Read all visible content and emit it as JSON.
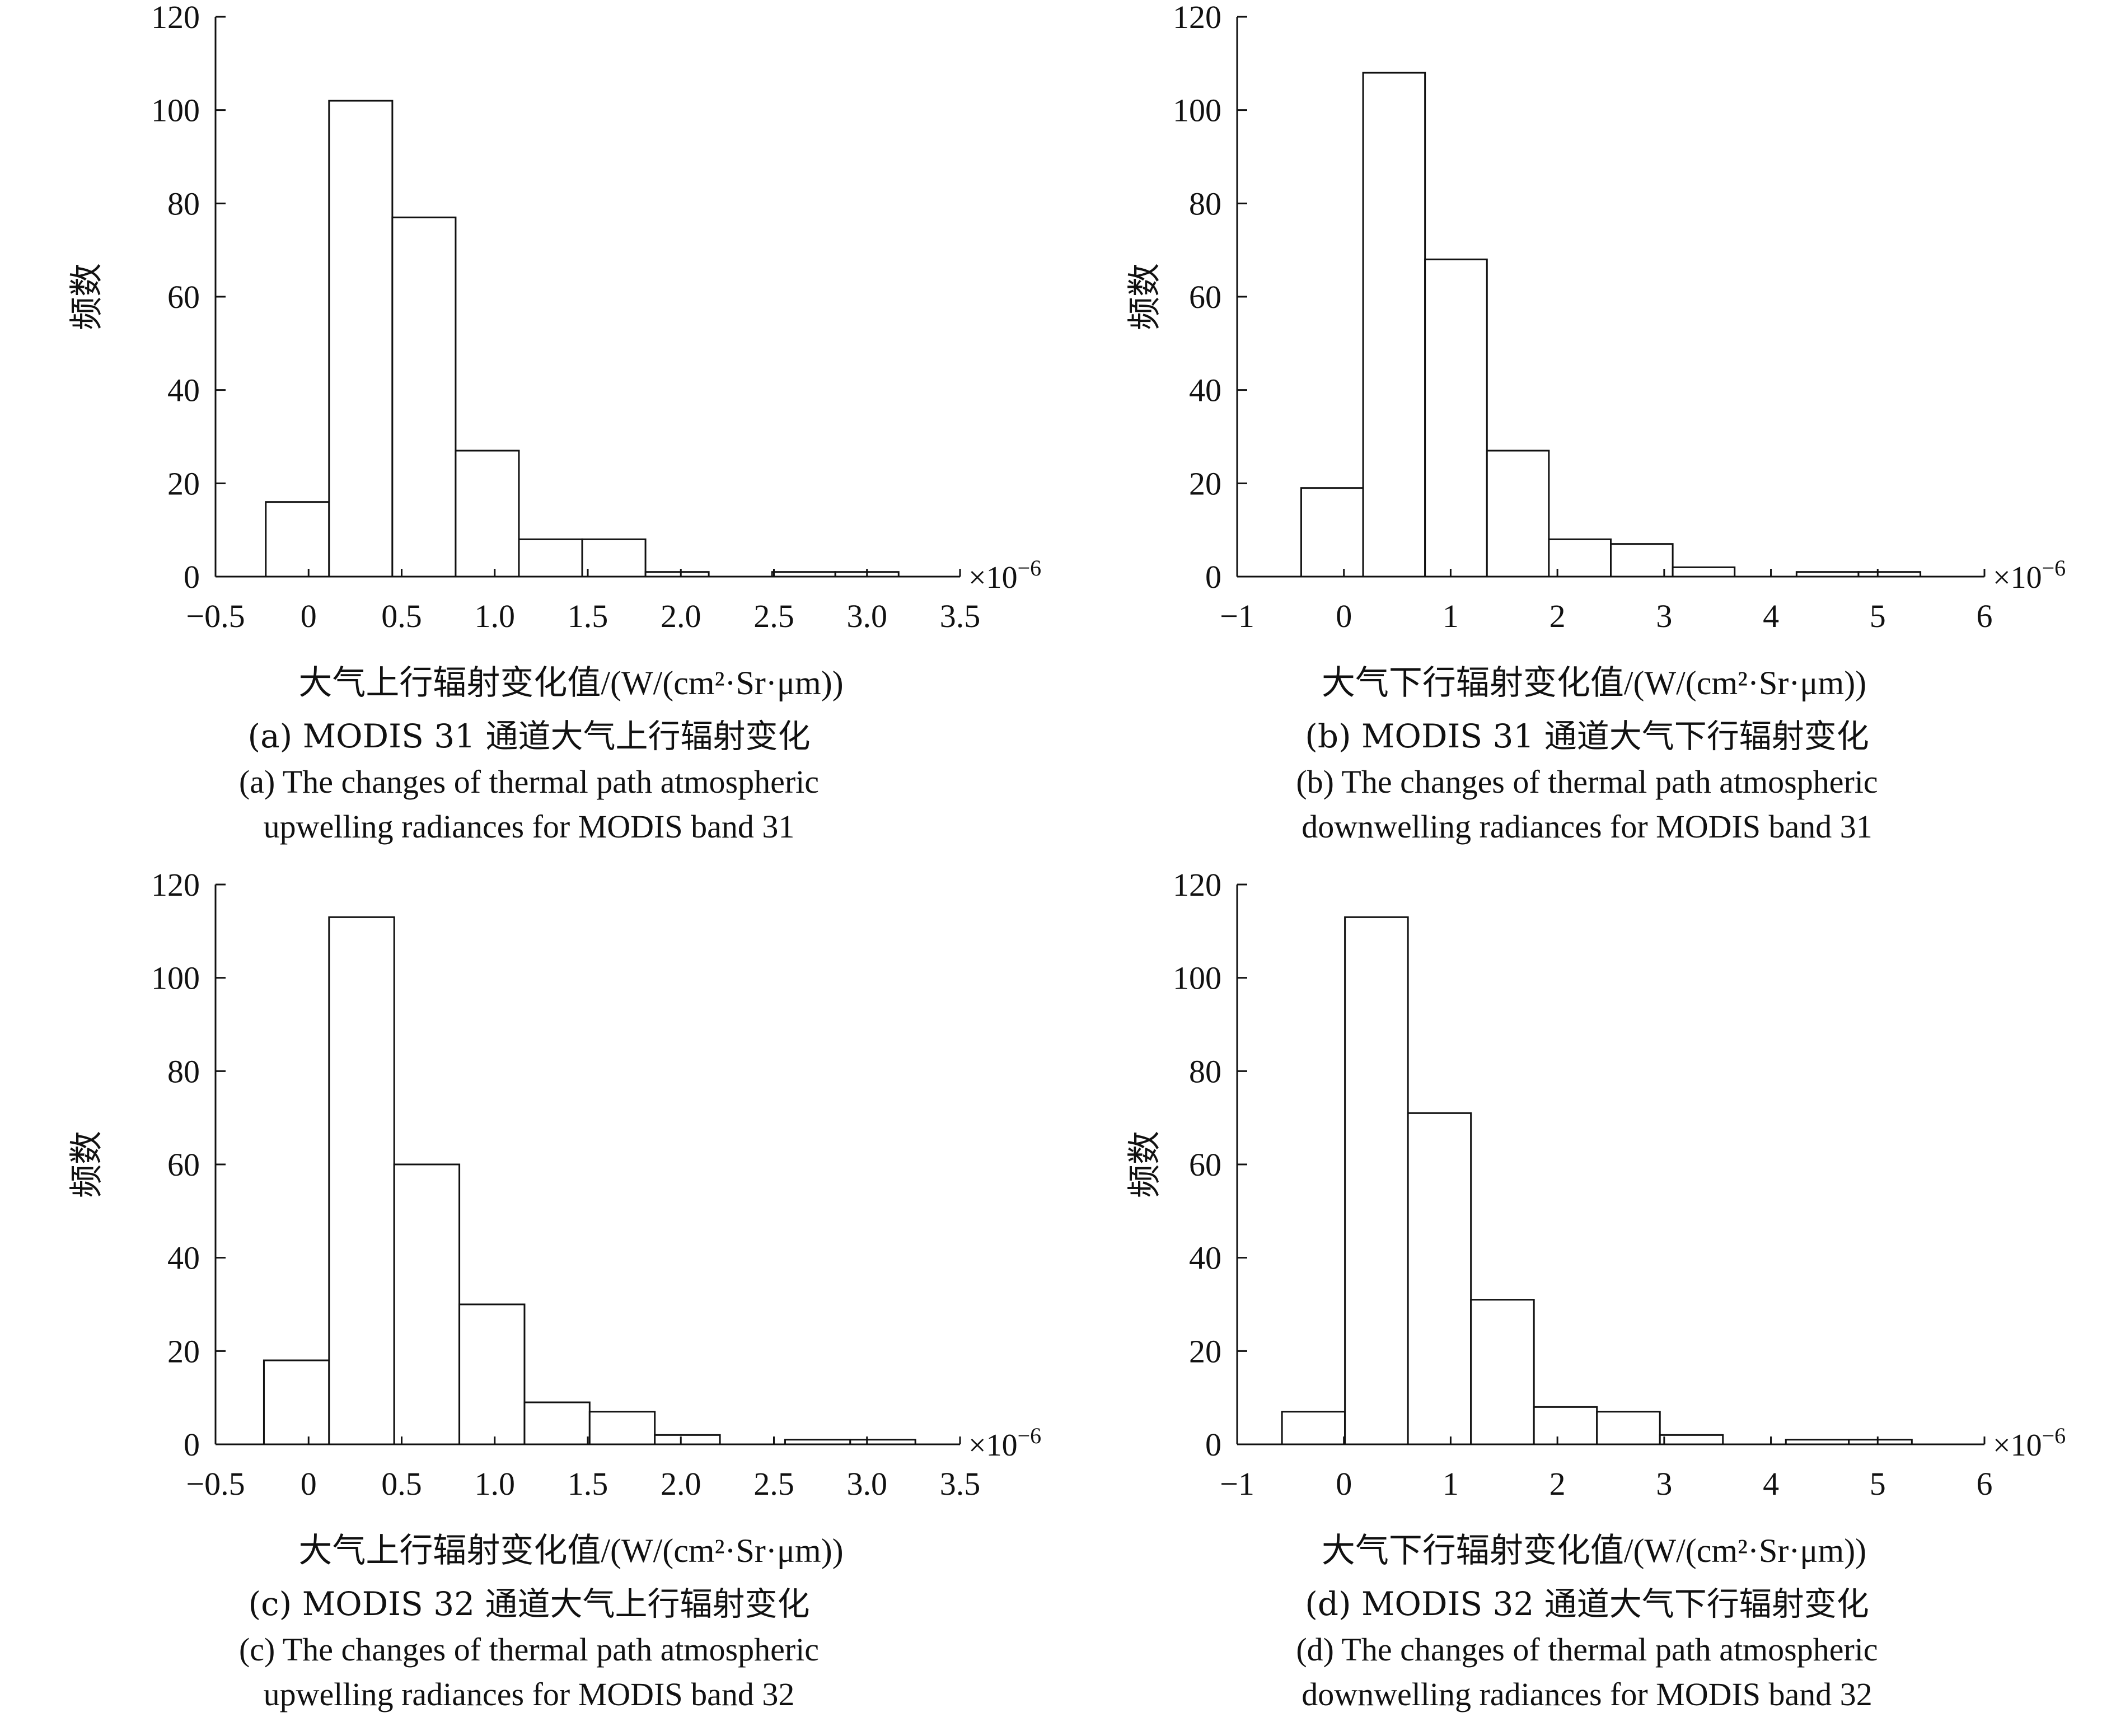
{
  "chart_data": [
    {
      "type": "bar",
      "panel": "a",
      "ylabel": "频数",
      "xlabel": "大气上行辐射变化值/(W/(cm²·Sr·μm))",
      "x_multiplier": "×10−6",
      "xlim": [
        -0.5,
        3.5
      ],
      "ylim": [
        0,
        120
      ],
      "xticks": [
        "−0.5",
        "0",
        "0.5",
        "1.0",
        "1.5",
        "2.0",
        "2.5",
        "3.0",
        "3.5"
      ],
      "xtick_values": [
        -0.5,
        0,
        0.5,
        1.0,
        1.5,
        2.0,
        2.5,
        3.0,
        3.5
      ],
      "yticks": [
        "0",
        "20",
        "40",
        "60",
        "80",
        "100",
        "120"
      ],
      "bins": [
        {
          "x0": -0.23,
          "x1": 0.11,
          "count": 16
        },
        {
          "x0": 0.11,
          "x1": 0.45,
          "count": 102
        },
        {
          "x0": 0.45,
          "x1": 0.79,
          "count": 77
        },
        {
          "x0": 0.79,
          "x1": 1.13,
          "count": 27
        },
        {
          "x0": 1.13,
          "x1": 1.47,
          "count": 8
        },
        {
          "x0": 1.47,
          "x1": 1.81,
          "count": 8
        },
        {
          "x0": 1.81,
          "x1": 2.15,
          "count": 1
        },
        {
          "x0": 2.15,
          "x1": 2.49,
          "count": 0
        },
        {
          "x0": 2.49,
          "x1": 2.83,
          "count": 1
        },
        {
          "x0": 2.83,
          "x1": 3.17,
          "count": 1
        }
      ],
      "caption_cn": "(a) MODIS 31 通道大气上行辐射变化",
      "caption_en_1": "(a) The changes of thermal path atmospheric",
      "caption_en_2": "upwelling radiances for MODIS band 31"
    },
    {
      "type": "bar",
      "panel": "b",
      "ylabel": "频数",
      "xlabel": "大气下行辐射变化值/(W/(cm²·Sr·μm))",
      "x_multiplier": "×10−6",
      "xlim": [
        -1,
        6
      ],
      "ylim": [
        0,
        120
      ],
      "xticks": [
        "−1",
        "0",
        "1",
        "2",
        "3",
        "4",
        "5",
        "6"
      ],
      "xtick_values": [
        -1,
        0,
        1,
        2,
        3,
        4,
        5,
        6
      ],
      "yticks": [
        "0",
        "20",
        "40",
        "60",
        "80",
        "100",
        "120"
      ],
      "bins": [
        {
          "x0": -0.4,
          "x1": 0.18,
          "count": 19
        },
        {
          "x0": 0.18,
          "x1": 0.76,
          "count": 108
        },
        {
          "x0": 0.76,
          "x1": 1.34,
          "count": 68
        },
        {
          "x0": 1.34,
          "x1": 1.92,
          "count": 27
        },
        {
          "x0": 1.92,
          "x1": 2.5,
          "count": 8
        },
        {
          "x0": 2.5,
          "x1": 3.08,
          "count": 7
        },
        {
          "x0": 3.08,
          "x1": 3.66,
          "count": 2
        },
        {
          "x0": 3.66,
          "x1": 4.24,
          "count": 0
        },
        {
          "x0": 4.24,
          "x1": 4.82,
          "count": 1
        },
        {
          "x0": 4.82,
          "x1": 5.4,
          "count": 1
        }
      ],
      "caption_cn": "(b) MODIS 31 通道大气下行辐射变化",
      "caption_en_1": "(b) The changes of thermal path atmospheric",
      "caption_en_2": "downwelling radiances for MODIS band 31"
    },
    {
      "type": "bar",
      "panel": "c",
      "ylabel": "频数",
      "xlabel": "大气上行辐射变化值/(W/(cm²·Sr·μm))",
      "x_multiplier": "×10−6",
      "xlim": [
        -0.5,
        3.5
      ],
      "ylim": [
        0,
        120
      ],
      "xticks": [
        "−0.5",
        "0",
        "0.5",
        "1.0",
        "1.5",
        "2.0",
        "2.5",
        "3.0",
        "3.5"
      ],
      "xtick_values": [
        -0.5,
        0,
        0.5,
        1.0,
        1.5,
        2.0,
        2.5,
        3.0,
        3.5
      ],
      "yticks": [
        "0",
        "20",
        "40",
        "60",
        "80",
        "100",
        "120"
      ],
      "bins": [
        {
          "x0": -0.24,
          "x1": 0.11,
          "count": 18
        },
        {
          "x0": 0.11,
          "x1": 0.46,
          "count": 113
        },
        {
          "x0": 0.46,
          "x1": 0.81,
          "count": 60
        },
        {
          "x0": 0.81,
          "x1": 1.16,
          "count": 30
        },
        {
          "x0": 1.16,
          "x1": 1.51,
          "count": 9
        },
        {
          "x0": 1.51,
          "x1": 1.86,
          "count": 7
        },
        {
          "x0": 1.86,
          "x1": 2.21,
          "count": 2
        },
        {
          "x0": 2.21,
          "x1": 2.56,
          "count": 0
        },
        {
          "x0": 2.56,
          "x1": 2.91,
          "count": 1
        },
        {
          "x0": 2.91,
          "x1": 3.26,
          "count": 1
        }
      ],
      "caption_cn": "(c) MODIS 32 通道大气上行辐射变化",
      "caption_en_1": "(c) The changes of thermal path atmospheric",
      "caption_en_2": "upwelling radiances for MODIS band 32"
    },
    {
      "type": "bar",
      "panel": "d",
      "ylabel": "频数",
      "xlabel": "大气下行辐射变化值/(W/(cm²·Sr·μm))",
      "x_multiplier": "×10−6",
      "xlim": [
        -1,
        6
      ],
      "ylim": [
        0,
        120
      ],
      "xticks": [
        "−1",
        "0",
        "1",
        "2",
        "3",
        "4",
        "5",
        "6"
      ],
      "xtick_values": [
        -1,
        0,
        1,
        2,
        3,
        4,
        5,
        6
      ],
      "yticks": [
        "0",
        "20",
        "40",
        "60",
        "80",
        "100",
        "120"
      ],
      "bins": [
        {
          "x0": -0.58,
          "x1": 0.01,
          "count": 7
        },
        {
          "x0": 0.01,
          "x1": 0.6,
          "count": 113
        },
        {
          "x0": 0.6,
          "x1": 1.19,
          "count": 71
        },
        {
          "x0": 1.19,
          "x1": 1.78,
          "count": 31
        },
        {
          "x0": 1.78,
          "x1": 2.37,
          "count": 8
        },
        {
          "x0": 2.37,
          "x1": 2.96,
          "count": 7
        },
        {
          "x0": 2.96,
          "x1": 3.55,
          "count": 2
        },
        {
          "x0": 3.55,
          "x1": 4.14,
          "count": 0
        },
        {
          "x0": 4.14,
          "x1": 4.73,
          "count": 1
        },
        {
          "x0": 4.73,
          "x1": 5.32,
          "count": 1
        }
      ],
      "caption_cn": "(d) MODIS 32 通道大气下行辐射变化",
      "caption_en_1": "(d) The changes of thermal path atmospheric",
      "caption_en_2": "downwelling radiances for MODIS band 32"
    }
  ]
}
